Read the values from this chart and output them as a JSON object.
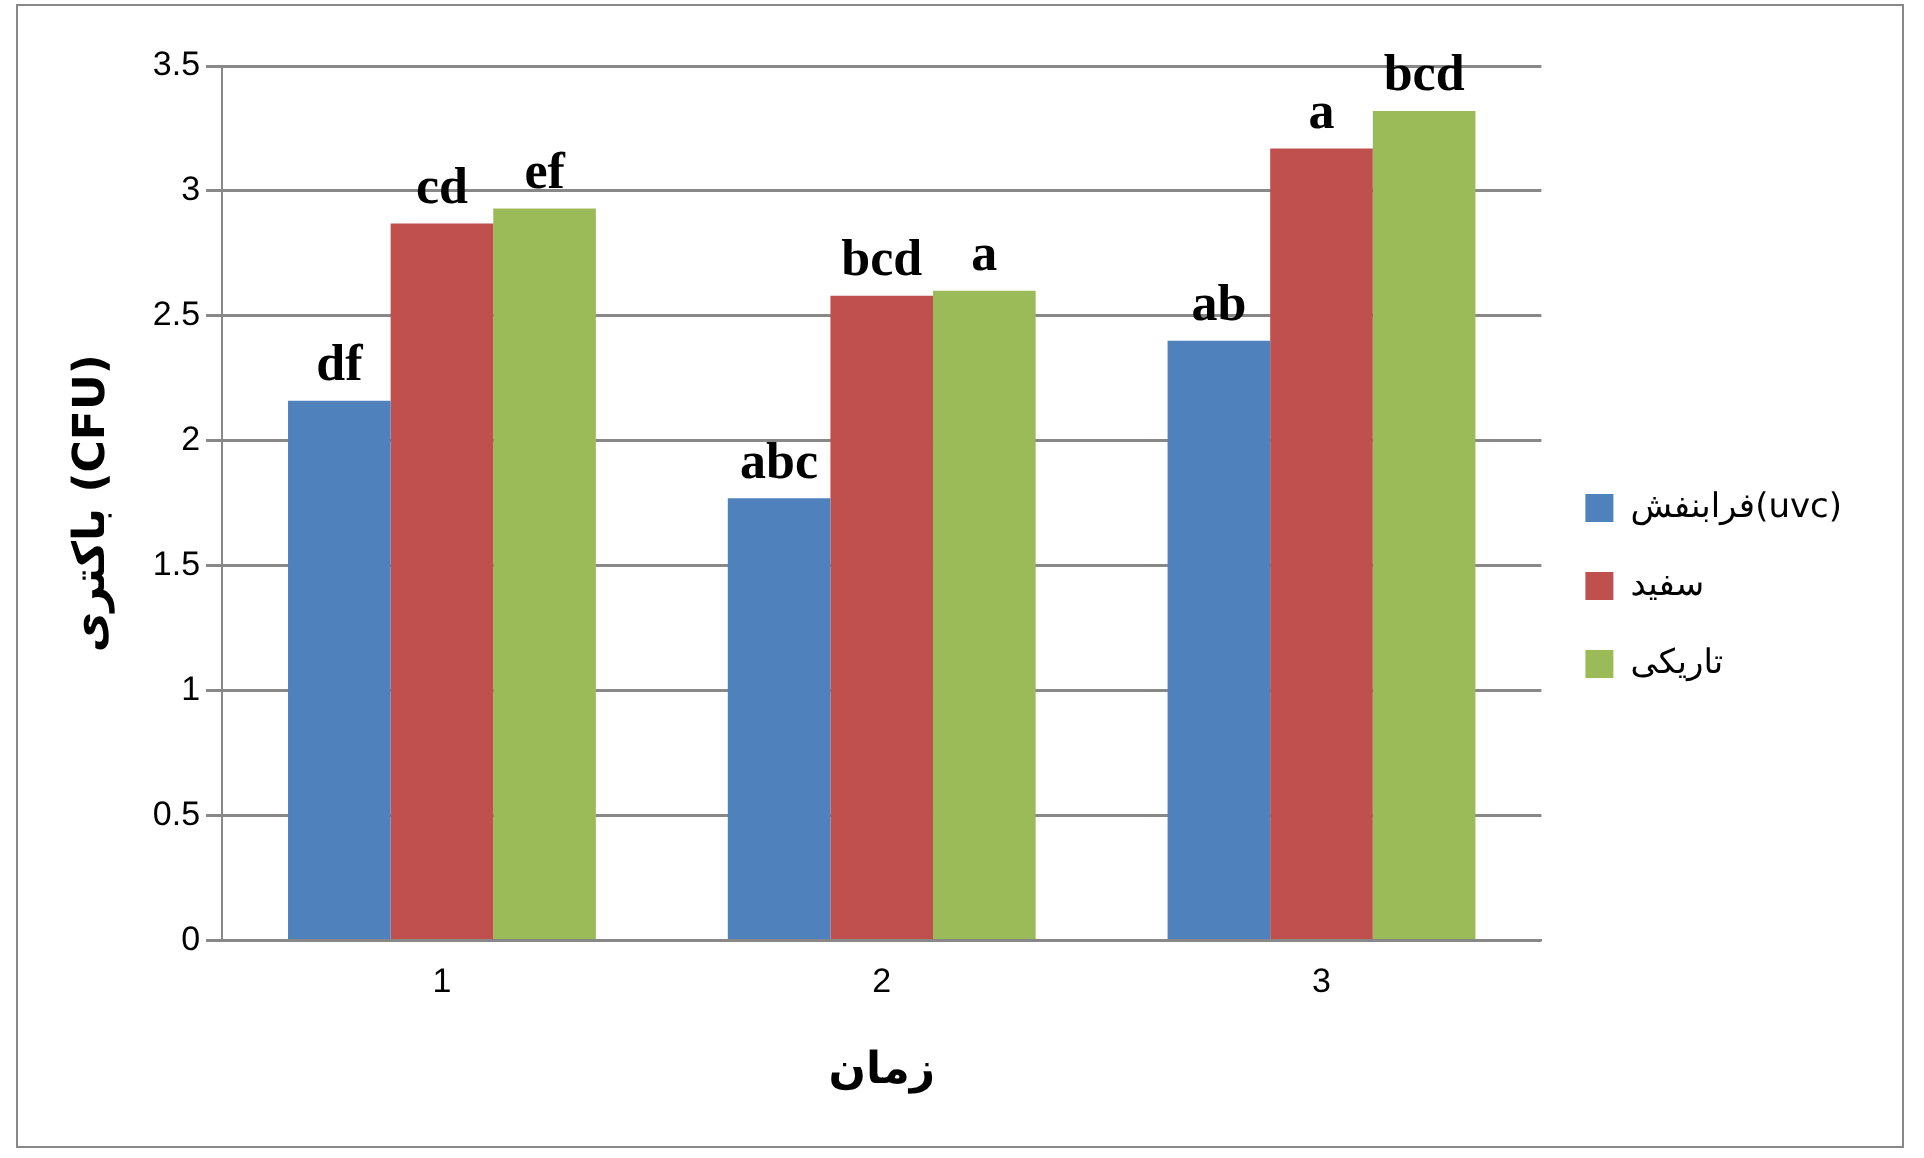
{
  "chart_data": {
    "type": "bar",
    "xlabel": "زمان",
    "ylabel": "باکتری (CFU)",
    "categories": [
      "1",
      "2",
      "3"
    ],
    "series": [
      {
        "name": "فرابنفش(uvc)",
        "color": "#4f81bd",
        "values": [
          2.16,
          1.77,
          2.4
        ],
        "value_labels": [
          "df",
          "abc",
          "ab"
        ]
      },
      {
        "name": "سفید",
        "color": "#c0504d",
        "values": [
          2.87,
          2.58,
          3.17
        ],
        "value_labels": [
          "cd",
          "bcd",
          "a"
        ]
      },
      {
        "name": "تاریکی",
        "color": "#9bbb59",
        "values": [
          2.93,
          2.6,
          3.32
        ],
        "value_labels": [
          "ef",
          "a",
          "bcd"
        ]
      }
    ],
    "ylim": [
      0,
      3.5
    ],
    "yticks": [
      0,
      0.5,
      1,
      1.5,
      2,
      2.5,
      3,
      3.5
    ],
    "grid": "y",
    "legend": "right"
  }
}
